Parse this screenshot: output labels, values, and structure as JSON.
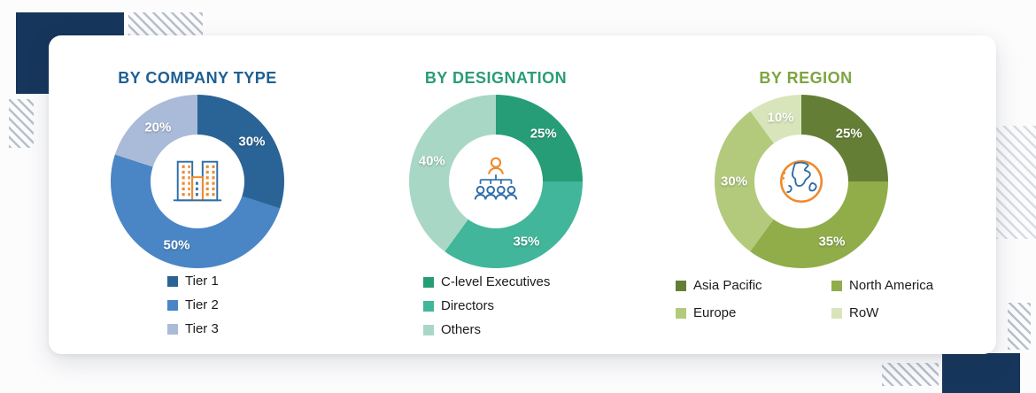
{
  "page": {
    "background": "#fcfcfd",
    "card_color": "#ffffff",
    "accent_navy": "#16365c"
  },
  "chart_data": [
    {
      "type": "pie",
      "variant": "donut",
      "title": "BY COMPANY TYPE",
      "title_color": "#1e6094",
      "categories": [
        "Tier 1",
        "Tier 2",
        "Tier 3"
      ],
      "values": [
        30,
        50,
        20
      ],
      "unit": "%",
      "colors": [
        "#2a6496",
        "#4a86c5",
        "#a9bbd8"
      ],
      "slice_labels": [
        "30%",
        "50%",
        "20%"
      ],
      "center_icon": "buildings-icon",
      "legend_position": "bottom",
      "legend_layout": "column",
      "start_angle_deg": 0,
      "direction": "clockwise"
    },
    {
      "type": "pie",
      "variant": "donut",
      "title": "BY DESIGNATION",
      "title_color": "#2b9c77",
      "categories": [
        "C-level Executives",
        "Directors",
        "Others"
      ],
      "values": [
        25,
        35,
        40
      ],
      "unit": "%",
      "colors": [
        "#279d77",
        "#41b69a",
        "#a8d8c5"
      ],
      "slice_labels": [
        "25%",
        "35%",
        "40%"
      ],
      "center_icon": "org-chart-icon",
      "legend_position": "bottom",
      "legend_layout": "column",
      "start_angle_deg": 0,
      "direction": "clockwise"
    },
    {
      "type": "pie",
      "variant": "donut",
      "title": "BY REGION",
      "title_color": "#7ca540",
      "categories": [
        "Asia Pacific",
        "North America",
        "Europe",
        "RoW"
      ],
      "values": [
        25,
        35,
        30,
        10
      ],
      "unit": "%",
      "colors": [
        "#647f35",
        "#90ad4a",
        "#b3ca7c",
        "#d8e5ba"
      ],
      "slice_labels": [
        "25%",
        "35%",
        "30%",
        "10%"
      ],
      "center_icon": "globe-icon",
      "legend_position": "bottom",
      "legend_layout": "grid-2col",
      "start_angle_deg": 0,
      "direction": "clockwise"
    }
  ]
}
